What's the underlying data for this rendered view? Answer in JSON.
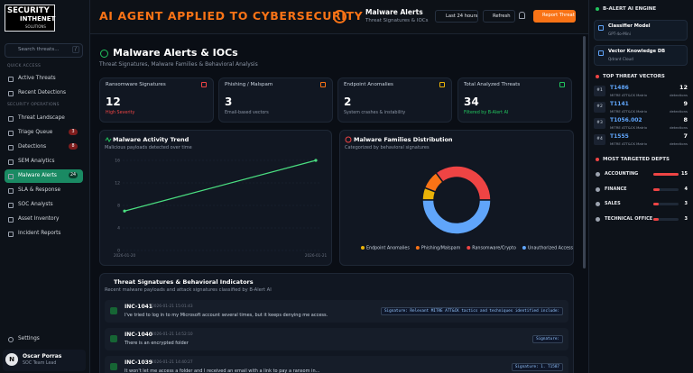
{
  "sidebar": {
    "logo": {
      "line1": "SECURITY",
      "line2": "INTHENET",
      "line3": "SOLUTIONS"
    },
    "search_placeholder": "Search threats...",
    "search_key": "/",
    "quick_access": {
      "heading": "QUICK ACCESS",
      "items": [
        "Active Threats",
        "Recent Detections"
      ]
    },
    "security_operations": {
      "heading": "SECURITY OPERATIONS",
      "items": [
        {
          "label": "Threat Landscape"
        },
        {
          "label": "Triage Queue",
          "badge": 3
        },
        {
          "label": "Detections",
          "badge": 8
        },
        {
          "label": "SEM Analytics"
        },
        {
          "label": "Malware Alerts",
          "badge": 24,
          "active": true
        },
        {
          "label": "SLA & Response"
        },
        {
          "label": "SOC Analysts"
        },
        {
          "label": "Asset Inventory"
        },
        {
          "label": "Incident Reports"
        }
      ]
    },
    "settings": "Settings",
    "user": {
      "initial": "N",
      "name": "Oscar Porras",
      "role": "SOC Team Lead"
    }
  },
  "topbar": {
    "banner": "AI AGENT APPLIED TO CYBERSECURITY",
    "page": "Malware Alerts",
    "page_subtitle": "Threat Signatures & IOCs",
    "range": "Last 24 hours",
    "refresh": "Refresh",
    "report": "Report Threat"
  },
  "main": {
    "title": "Malware Alerts & IOCs",
    "subtitle": "Threat Signatures, Malware Families & Behavioral Analysis",
    "cards": [
      {
        "label": "Ransomware Signatures",
        "value": 12,
        "note": "High Severity"
      },
      {
        "label": "Phishing / Malspam",
        "value": 3,
        "note": "Email-based vectors"
      },
      {
        "label": "Endpoint Anomalies",
        "value": 2,
        "note": "System crashes & instability"
      },
      {
        "label": "Total Analyzed Threats",
        "value": 34,
        "note": "Filtered by B-Alert AI"
      }
    ]
  },
  "chart_data": [
    {
      "type": "line",
      "title": "Malware Activity Trend",
      "subtitle": "Malicious payloads detected over time",
      "categories": [
        "2026-01-20",
        "2026-01-21"
      ],
      "values": [
        7,
        16
      ],
      "color": "#4ade80",
      "ylim": [
        0,
        16
      ],
      "yticks": [
        0,
        4,
        8,
        12,
        16
      ],
      "grid": true
    },
    {
      "type": "pie",
      "title": "Malware Families Distribution",
      "subtitle": "Categorized by behavioral signatures",
      "categories": [
        "Endpoint Anomalies",
        "Phishing/Malspam",
        "Ransomware/Crypto",
        "Unauthorized Access"
      ],
      "values": [
        2,
        3,
        12,
        17
      ],
      "colors": [
        "#eab308",
        "#f97316",
        "#ef4444",
        "#60a5fa"
      ],
      "donut": true
    }
  ],
  "threats": {
    "title": "Threat Signatures & Behavioral Indicators",
    "subtitle": "Recent malware payloads and attack signatures classified by B-Alert AI",
    "rows": [
      {
        "id": "INC-1041",
        "time": "2026-01-21 15:01:43",
        "text": "I've tried to log in to my Microsoft account several times, but it keeps denying me access.",
        "signature": "Signature: Relevant MITRE ATT&CK tactics and techniques identified include:"
      },
      {
        "id": "INC-1040",
        "time": "2026-01-21 14:52:10",
        "text": "There is an encrypted folder",
        "signature": "Signature:"
      },
      {
        "id": "INC-1039",
        "time": "2026-01-21 14:40:27",
        "text": "It won't let me access a folder and I received an email with a link to pay a ransom in...",
        "signature": "Signature: 1. T1587"
      }
    ]
  },
  "engine": {
    "heading": "B-ALERT AI ENGINE",
    "items": [
      {
        "name": "Classifier Model",
        "detail": "GPT-4o-Mini"
      },
      {
        "name": "Vector Knowledge DB",
        "detail": "Qdrant Cloud"
      }
    ]
  },
  "vectors": {
    "heading": "TOP THREAT VECTORS",
    "items": [
      {
        "rank": "#1",
        "id": "T1486",
        "source": "MITRE ATT&CK Matrix",
        "count": 12,
        "unit": "detections"
      },
      {
        "rank": "#2",
        "id": "T1141",
        "source": "MITRE ATT&CK Matrix",
        "count": 9,
        "unit": "detections"
      },
      {
        "rank": "#3",
        "id": "T1056.002",
        "source": "MITRE ATT&CK Matrix",
        "count": 8,
        "unit": "detections"
      },
      {
        "rank": "#4",
        "id": "T1555",
        "source": "MITRE ATT&CK Matrix",
        "count": 7,
        "unit": "detections"
      }
    ]
  },
  "depts": {
    "heading": "MOST TARGETED DEPTS",
    "items": [
      {
        "name": "ACCOUNTING",
        "count": 15
      },
      {
        "name": "FINANCE",
        "count": 4
      },
      {
        "name": "SALES",
        "count": 3
      },
      {
        "name": "TECHNICAL OFFICE",
        "count": 3
      }
    ]
  }
}
